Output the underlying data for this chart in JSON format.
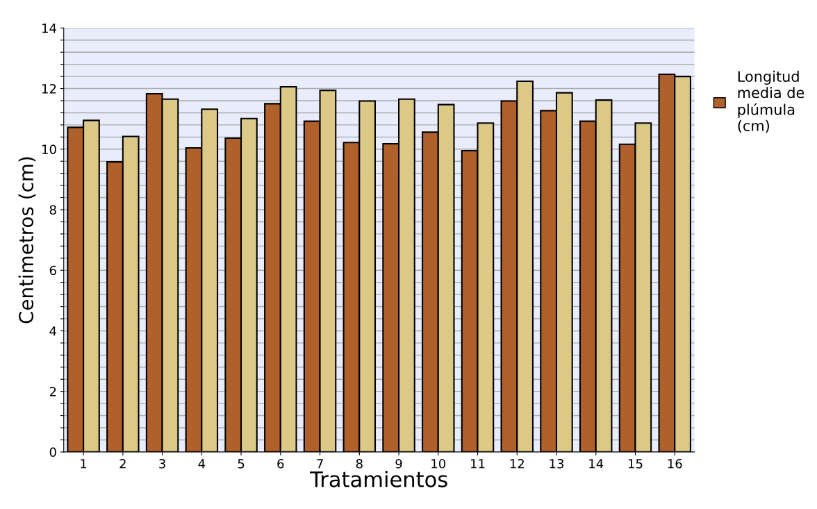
{
  "chart_data": {
    "type": "bar",
    "xlabel": "Tratamientos",
    "ylabel": "Centimetros (cm)",
    "categories": [
      "1",
      "2",
      "3",
      "4",
      "5",
      "6",
      "7",
      "8",
      "9",
      "10",
      "11",
      "12",
      "13",
      "14",
      "15",
      "16"
    ],
    "series": [
      {
        "name": "Longitud\nmedia de\nplúmula\n(cm)",
        "color": "#b0602a",
        "values": [
          10.72,
          9.58,
          11.83,
          10.04,
          10.36,
          11.5,
          10.92,
          10.22,
          10.18,
          10.56,
          9.95,
          11.59,
          11.27,
          10.92,
          10.16,
          12.47
        ]
      },
      {
        "color": "#dcc987",
        "values": [
          10.95,
          10.42,
          11.65,
          11.32,
          11.01,
          12.06,
          11.94,
          11.59,
          11.65,
          11.47,
          10.86,
          12.24,
          11.86,
          11.62,
          10.86,
          12.4
        ]
      }
    ],
    "ylim": [
      0,
      14
    ],
    "yticks": [
      0,
      {
        "value": 0.4,
        "label": null
      },
      {
        "value": 0.8,
        "label": null
      },
      {
        "value": 1.2,
        "label": null
      },
      {
        "value": 1.6,
        "label": null
      },
      2,
      {
        "value": 2.4,
        "label": null
      },
      {
        "value": 2.8,
        "label": null
      },
      {
        "value": 3.2,
        "label": null
      },
      {
        "value": 3.6,
        "label": null
      },
      4,
      {
        "value": 4.4,
        "label": null
      },
      {
        "value": 4.8,
        "label": null
      },
      {
        "value": 5.2,
        "label": null
      },
      {
        "value": 5.6,
        "label": null
      },
      6,
      {
        "value": 6.4,
        "label": null
      },
      {
        "value": 6.8,
        "label": null
      },
      {
        "value": 7.2,
        "label": null
      },
      {
        "value": 7.6,
        "label": null
      },
      8,
      {
        "value": 8.4,
        "label": null
      },
      {
        "value": 8.8,
        "label": null
      },
      {
        "value": 9.2,
        "label": null
      },
      {
        "value": 9.6,
        "label": null
      },
      10,
      {
        "value": 10.4,
        "label": null
      },
      {
        "value": 10.8,
        "label": null
      },
      {
        "value": 11.2,
        "label": null
      },
      {
        "value": 11.6,
        "label": null
      },
      12,
      {
        "value": 12.4,
        "label": null
      },
      {
        "value": 12.8,
        "label": null
      },
      {
        "value": 13.2,
        "label": null
      },
      {
        "value": 13.6,
        "label": null
      },
      14
    ],
    "grid": "y",
    "legend": "right"
  }
}
